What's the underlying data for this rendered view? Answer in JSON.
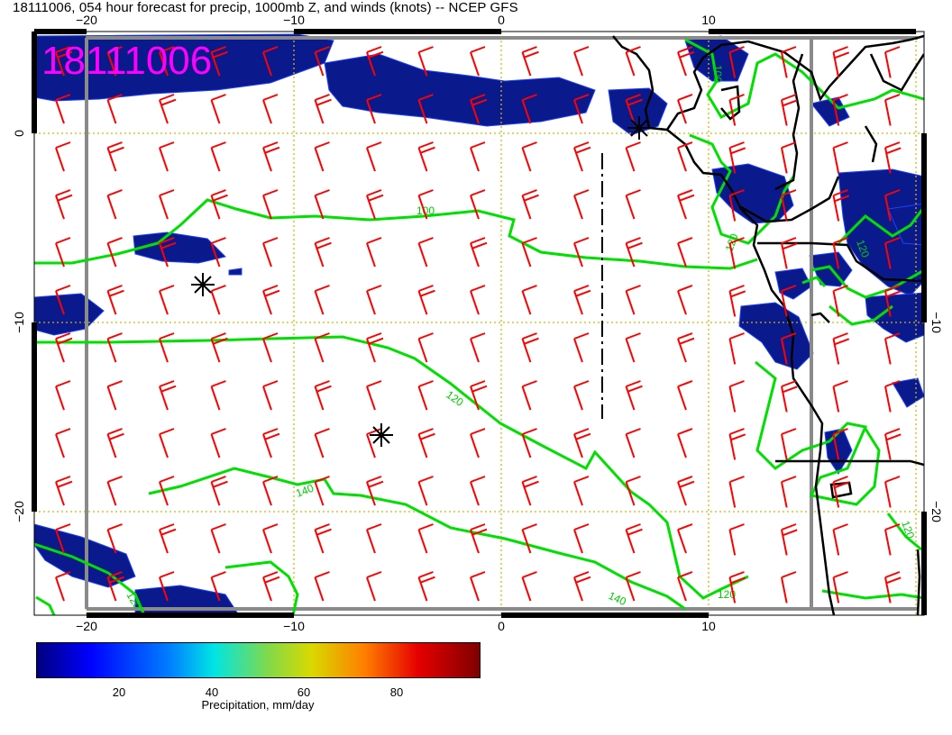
{
  "title": "18111006, 054 hour forecast for precip, 1000mb Z, and winds (knots) -- NCEP GFS",
  "stamp": "18111006",
  "axes": {
    "top_ticks": [
      "−20",
      "−10",
      "0",
      "10"
    ],
    "bottom_ticks": [
      "−20",
      "−10",
      "0",
      "10"
    ],
    "left_ticks": [
      "0",
      "−10",
      "−20"
    ],
    "right_ticks": [
      "−10",
      "−20"
    ]
  },
  "contour_labels": [
    "100",
    "120",
    "140",
    "140",
    "120",
    "100",
    "120",
    "120",
    "120",
    "120"
  ],
  "colorbar": {
    "ticks": [
      "20",
      "40",
      "60",
      "80"
    ],
    "label": "Precipitation, mm/day"
  },
  "colors": {
    "barb": "#ff0000",
    "contour": "#00e000",
    "stamp": "#ff00ff",
    "precip_dark": "#0a1a8c",
    "grid": "#d4b800"
  }
}
